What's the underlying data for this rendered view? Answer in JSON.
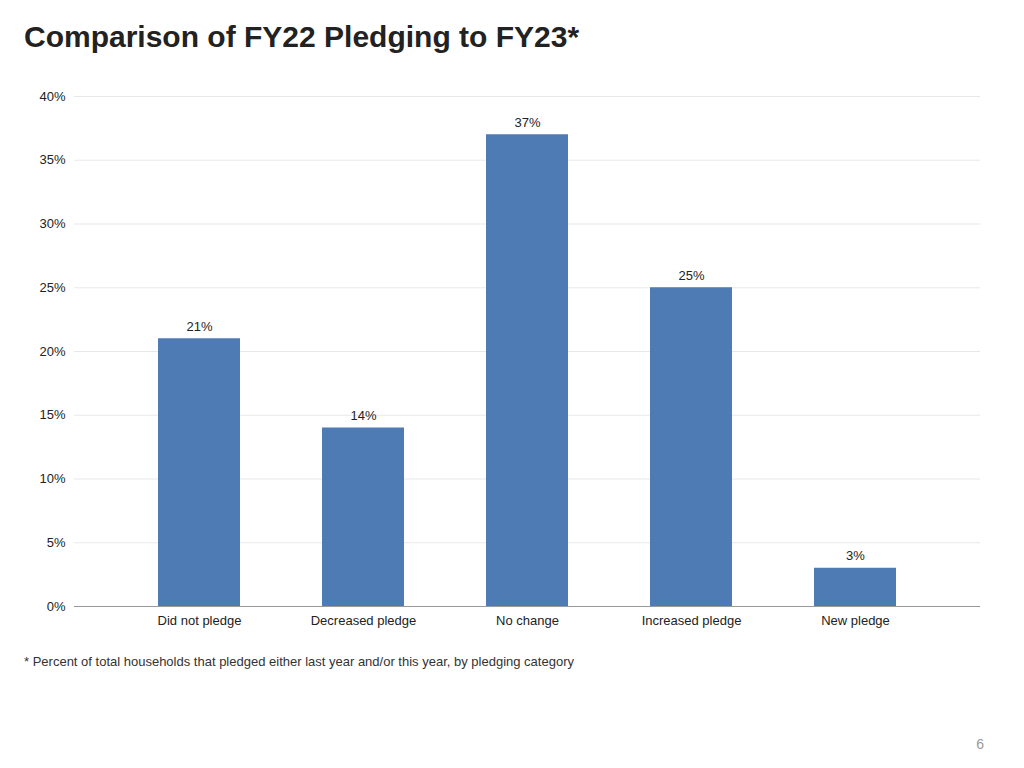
{
  "chart_data": {
    "type": "bar",
    "title": "Comparison of FY22 Pledging to FY23*",
    "categories": [
      "Did not pledge",
      "Decreased pledge",
      "No change",
      "Increased pledge",
      "New pledge"
    ],
    "values": [
      21,
      14,
      37,
      25,
      3
    ],
    "value_labels": [
      "21%",
      "14%",
      "37%",
      "25%",
      "3%"
    ],
    "data_labels": true,
    "color": "#4F7BB5",
    "ylim": [
      0,
      40
    ],
    "yticks": [
      {
        "value": 0,
        "label": "0%"
      },
      {
        "value": 5,
        "label": "5%"
      },
      {
        "value": 10,
        "label": "10%"
      },
      {
        "value": 15,
        "label": "15%"
      },
      {
        "value": 20,
        "label": "20%"
      },
      {
        "value": 25,
        "label": "25%"
      },
      {
        "value": 30,
        "label": "30%"
      },
      {
        "value": 35,
        "label": "35%"
      },
      {
        "value": 40,
        "label": "40%"
      }
    ],
    "grid": true,
    "annotations": [
      "* Percent of total households that pledged either last year and/or this year, by pledging category",
      "6"
    ]
  }
}
